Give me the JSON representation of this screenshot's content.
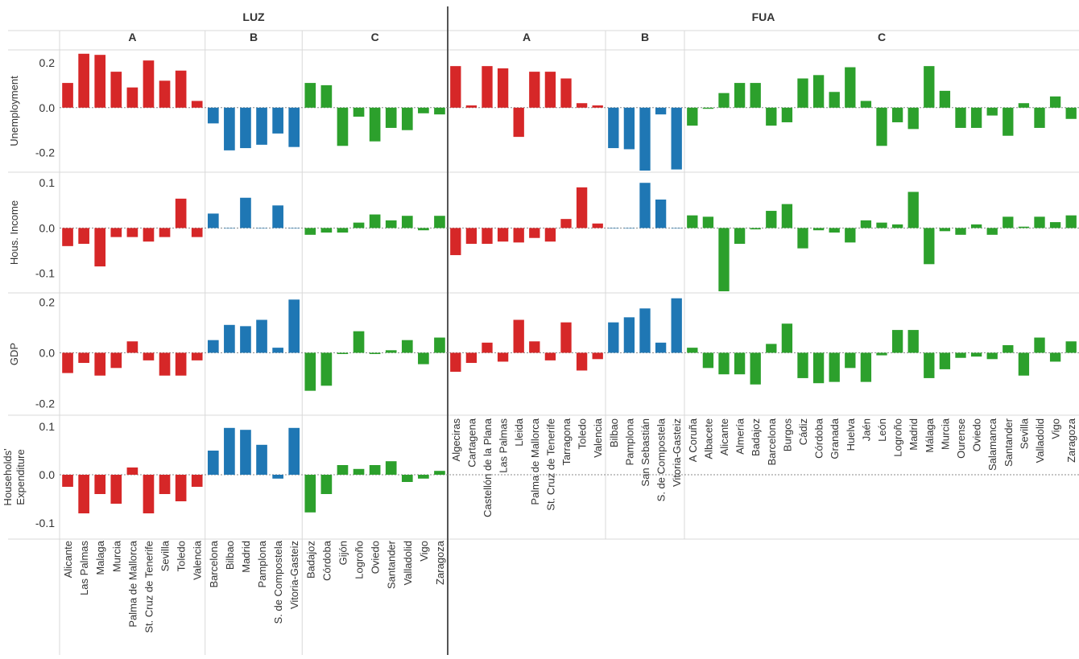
{
  "colors": {
    "A": "#d62728",
    "B": "#1f77b4",
    "C": "#2ca02c"
  },
  "chart_data": {
    "type": "bar",
    "panels": [
      {
        "label": "LUZ",
        "groups": [
          {
            "label": "A",
            "color_key": "A",
            "categories": [
              "Alicante",
              "Las Palmas",
              "Malaga",
              "Murcia",
              "Palma de Mallorca",
              "St. Cruz de Tenerife",
              "Sevilla",
              "Toledo",
              "Valencia"
            ]
          },
          {
            "label": "B",
            "color_key": "B",
            "categories": [
              "Barcelona",
              "Bilbao",
              "Madrid",
              "Pamplona",
              "S. de Compostela",
              "Vitoria-Gasteiz"
            ]
          },
          {
            "label": "C",
            "color_key": "C",
            "categories": [
              "Badajoz",
              "Córdoba",
              "Gijón",
              "Logroño",
              "Oviedo",
              "Santander",
              "Valladolid",
              "Vigo",
              "Zaragoza"
            ]
          }
        ]
      },
      {
        "label": "FUA",
        "groups": [
          {
            "label": "A",
            "color_key": "A",
            "categories": [
              "Algeciras",
              "Cartagena",
              "Castellón de la Plana",
              "Las Palmas",
              "Lleida",
              "Palma de Mallorca",
              "St. Cruz de Tenerife",
              "Tarragona",
              "Toledo",
              "Valencia"
            ]
          },
          {
            "label": "B",
            "color_key": "B",
            "categories": [
              "Bilbao",
              "Pamplona",
              "San Sebastián",
              "S. de Compostela",
              "Vitoria-Gasteiz"
            ]
          },
          {
            "label": "C",
            "color_key": "C",
            "categories": [
              "A Coruña",
              "Albacete",
              "Alicante",
              "Almería",
              "Badajoz",
              "Barcelona",
              "Burgos",
              "Cádiz",
              "Córdoba",
              "Granada",
              "Huelva",
              "Jaén",
              "León",
              "Logroño",
              "Madrid",
              "Málaga",
              "Murcia",
              "Ourense",
              "Oviedo",
              "Salamanca",
              "Santander",
              "Sevilla",
              "Valladolid",
              "Vigo",
              "Zaragoza"
            ]
          }
        ]
      }
    ],
    "rows": [
      {
        "label": "Unemployment",
        "ylim": [
          -0.28,
          0.25
        ],
        "ticks": [
          0.2,
          0.0,
          -0.2
        ],
        "tick_labels": [
          "0.2",
          "0.0",
          "-0.2"
        ],
        "values": {
          "LUZ": [
            [
              0.11,
              0.24,
              0.235,
              0.16,
              0.09,
              0.21,
              0.12,
              0.165,
              0.03
            ],
            [
              -0.07,
              -0.19,
              -0.18,
              -0.165,
              -0.115,
              -0.175
            ],
            [
              0.11,
              0.1,
              -0.17,
              -0.04,
              -0.15,
              -0.09,
              -0.1,
              -0.025,
              -0.03
            ]
          ],
          "FUA": [
            [
              0.185,
              0.01,
              0.185,
              0.175,
              -0.13,
              0.16,
              0.16,
              0.13,
              0.02,
              0.01
            ],
            [
              -0.18,
              -0.185,
              -0.28,
              -0.03,
              -0.275
            ],
            [
              -0.08,
              -0.005,
              0.065,
              0.11,
              0.11,
              -0.08,
              -0.065,
              0.13,
              0.145,
              0.07,
              0.18,
              0.03,
              -0.17,
              -0.065,
              -0.095,
              0.185,
              0.075,
              -0.09,
              -0.09,
              -0.035,
              -0.125,
              0.02,
              -0.09,
              0.05,
              -0.05
            ]
          ]
        }
      },
      {
        "label": "Hous. Income",
        "ylim": [
          -0.14,
          0.12
        ],
        "ticks": [
          0.1,
          0.0,
          -0.1
        ],
        "tick_labels": [
          "0.1",
          "0.0",
          "-0.1"
        ],
        "values": {
          "LUZ": [
            [
              -0.04,
              -0.035,
              -0.085,
              -0.02,
              -0.02,
              -0.03,
              -0.02,
              0.065,
              -0.02
            ],
            [
              0.032,
              0.0,
              0.067,
              0.0,
              0.05,
              0.0
            ],
            [
              -0.015,
              -0.01,
              -0.01,
              0.012,
              0.03,
              0.017,
              0.027,
              -0.005,
              0.027
            ]
          ],
          "FUA": [
            [
              -0.06,
              -0.035,
              -0.035,
              -0.03,
              -0.032,
              -0.022,
              -0.03,
              0.02,
              0.09,
              0.01
            ],
            [
              0.0,
              0.0,
              0.1,
              0.063,
              0.0
            ],
            [
              0.028,
              0.025,
              -0.14,
              -0.035,
              -0.003,
              0.038,
              0.053,
              -0.045,
              -0.005,
              -0.01,
              -0.032,
              0.017,
              0.012,
              0.008,
              0.08,
              -0.08,
              -0.007,
              -0.015,
              0.008,
              -0.015,
              0.025,
              0.003,
              0.025,
              0.013,
              0.028
            ]
          ]
        }
      },
      {
        "label": "GDP",
        "ylim": [
          -0.24,
          0.23
        ],
        "ticks": [
          0.2,
          0.0,
          -0.2
        ],
        "tick_labels": [
          "0.2",
          "0.0",
          "-0.2"
        ],
        "values": {
          "LUZ": [
            [
              -0.08,
              -0.04,
              -0.09,
              -0.06,
              0.045,
              -0.03,
              -0.09,
              -0.09,
              -0.03
            ],
            [
              0.05,
              0.11,
              0.105,
              0.13,
              0.02,
              0.21
            ],
            [
              -0.15,
              -0.13,
              -0.005,
              0.085,
              -0.005,
              0.01,
              0.05,
              -0.045,
              0.06
            ]
          ],
          "FUA": [
            [
              -0.075,
              -0.04,
              0.04,
              -0.035,
              0.13,
              0.045,
              -0.03,
              0.12,
              -0.07,
              -0.025
            ],
            [
              0.12,
              0.14,
              0.175,
              0.04,
              0.215
            ],
            [
              0.02,
              -0.06,
              -0.085,
              -0.085,
              -0.125,
              0.035,
              0.115,
              -0.1,
              -0.12,
              -0.115,
              -0.06,
              -0.115,
              -0.01,
              0.09,
              0.09,
              -0.1,
              -0.065,
              -0.02,
              -0.015,
              -0.025,
              0.03,
              -0.09,
              0.06,
              -0.035,
              0.045
            ]
          ]
        }
      },
      {
        "label": "Households' Expenditure",
        "label_lines": [
          "Households'",
          "Expenditure"
        ],
        "ylim": [
          -0.13,
          0.12
        ],
        "ticks": [
          0.1,
          0.0,
          -0.1
        ],
        "tick_labels": [
          "0.1",
          "0.0",
          "-0.1"
        ],
        "values": {
          "LUZ": [
            [
              -0.025,
              -0.08,
              -0.04,
              -0.06,
              0.015,
              -0.08,
              -0.04,
              -0.055,
              -0.025
            ],
            [
              0.05,
              0.097,
              0.093,
              0.062,
              -0.008,
              0.097
            ],
            [
              -0.078,
              -0.04,
              0.02,
              0.012,
              0.02,
              0.028,
              -0.015,
              -0.008,
              0.008
            ]
          ],
          "FUA": [
            [],
            [],
            []
          ]
        }
      }
    ]
  }
}
